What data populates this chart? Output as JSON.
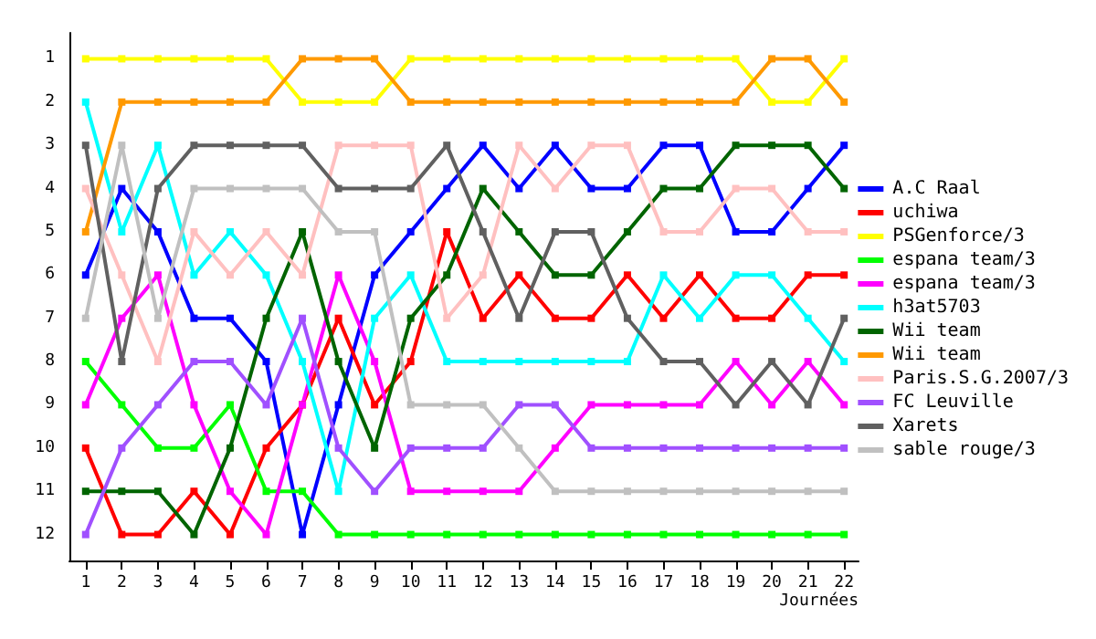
{
  "chart_data": {
    "type": "line",
    "xlabel": "Journées",
    "x": [
      1,
      2,
      3,
      4,
      5,
      6,
      7,
      8,
      9,
      10,
      11,
      12,
      13,
      14,
      15,
      16,
      17,
      18,
      19,
      20,
      21,
      22
    ],
    "xlim": [
      0.55,
      22.4
    ],
    "xticks": [
      1,
      2,
      3,
      4,
      5,
      6,
      7,
      8,
      9,
      10,
      11,
      12,
      13,
      14,
      15,
      16,
      17,
      18,
      19,
      20,
      21,
      22
    ],
    "ylim": [
      12.6,
      0.4
    ],
    "yticks": [
      1,
      2,
      3,
      4,
      5,
      6,
      7,
      8,
      9,
      10,
      11,
      12
    ],
    "grid": false,
    "legend": "right",
    "marker": "square",
    "line_style": "solid",
    "series": [
      {
        "name": "A.C Raal",
        "color": "#0000ff",
        "values": [
          6,
          4,
          5,
          7,
          7,
          8,
          12,
          9,
          6,
          5,
          4,
          3,
          4,
          3,
          4,
          4,
          3,
          3,
          5,
          5,
          4,
          3
        ]
      },
      {
        "name": "uchiwa",
        "color": "#ff0000",
        "values": [
          10,
          12,
          12,
          11,
          12,
          10,
          9,
          7,
          9,
          8,
          5,
          7,
          6,
          7,
          7,
          6,
          7,
          6,
          7,
          7,
          6,
          6
        ]
      },
      {
        "name": "PSGenforce/3",
        "color": "#ffff00",
        "values": [
          1,
          1,
          1,
          1,
          1,
          1,
          2,
          2,
          2,
          1,
          1,
          1,
          1,
          1,
          1,
          1,
          1,
          1,
          1,
          2,
          2,
          1
        ]
      },
      {
        "name": "espana team/3",
        "color": "#00ff00",
        "values": [
          8,
          9,
          10,
          10,
          9,
          11,
          11,
          12,
          12,
          12,
          12,
          12,
          12,
          12,
          12,
          12,
          12,
          12,
          12,
          12,
          12,
          12
        ]
      },
      {
        "name": "espana team/3",
        "color": "#ff00ff",
        "values": [
          9,
          7,
          6,
          9,
          11,
          12,
          9,
          6,
          8,
          11,
          11,
          11,
          11,
          10,
          9,
          9,
          9,
          9,
          8,
          9,
          8,
          9
        ]
      },
      {
        "name": "h3at5703",
        "color": "#00ffff",
        "values": [
          2,
          5,
          3,
          6,
          5,
          6,
          8,
          11,
          7,
          6,
          8,
          8,
          8,
          8,
          8,
          8,
          6,
          7,
          6,
          6,
          7,
          8
        ]
      },
      {
        "name": "Wii team",
        "color": "#006400",
        "values": [
          11,
          11,
          11,
          12,
          10,
          7,
          5,
          8,
          10,
          7,
          6,
          4,
          5,
          6,
          6,
          5,
          4,
          4,
          3,
          3,
          3,
          4
        ]
      },
      {
        "name": "Wii team",
        "color": "#ff9900",
        "values": [
          5,
          2,
          2,
          2,
          2,
          2,
          1,
          1,
          1,
          2,
          2,
          2,
          2,
          2,
          2,
          2,
          2,
          2,
          2,
          1,
          1,
          2
        ]
      },
      {
        "name": "Paris.S.G.2007/3",
        "color": "#ffc0c0",
        "values": [
          4,
          6,
          8,
          5,
          6,
          5,
          6,
          3,
          3,
          3,
          7,
          6,
          3,
          4,
          3,
          3,
          5,
          5,
          4,
          4,
          5,
          5
        ]
      },
      {
        "name": "FC Leuville",
        "color": "#a050ff",
        "values": [
          12,
          10,
          9,
          8,
          8,
          9,
          7,
          10,
          11,
          10,
          10,
          10,
          9,
          9,
          10,
          10,
          10,
          10,
          10,
          10,
          10,
          10
        ]
      },
      {
        "name": "Xarets",
        "color": "#606060",
        "values": [
          3,
          8,
          4,
          3,
          3,
          3,
          3,
          4,
          4,
          4,
          3,
          5,
          7,
          5,
          5,
          7,
          8,
          8,
          9,
          8,
          9,
          7
        ]
      },
      {
        "name": "sable rouge/3",
        "color": "#c0c0c0",
        "values": [
          7,
          3,
          7,
          4,
          4,
          4,
          4,
          5,
          5,
          9,
          9,
          9,
          10,
          11,
          11,
          11,
          11,
          11,
          11,
          11,
          11,
          11
        ]
      }
    ]
  }
}
